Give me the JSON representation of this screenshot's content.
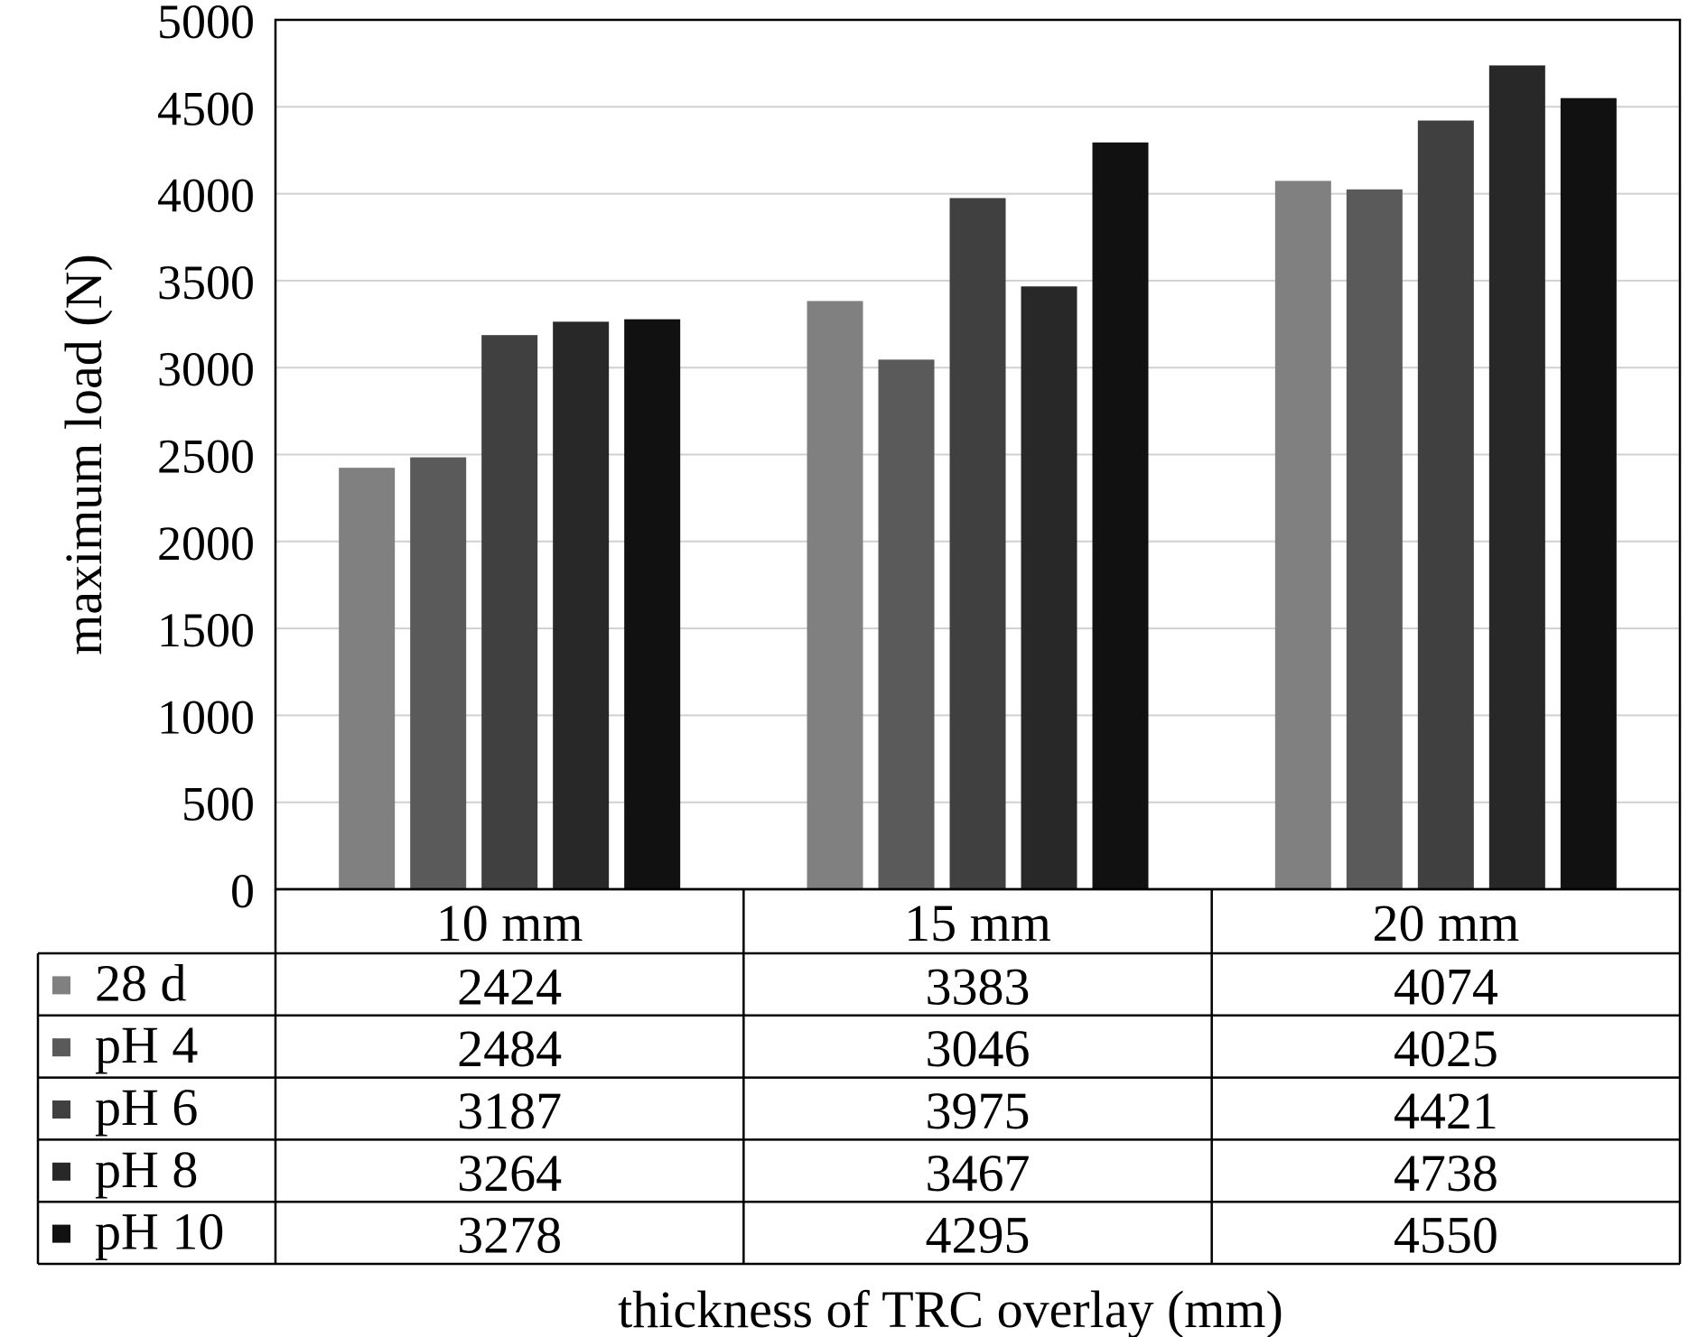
{
  "chart_data": {
    "type": "bar",
    "title": "",
    "xlabel": "thickness of TRC overlay (mm)",
    "ylabel": "maximum load (N)",
    "ylim": [
      0,
      5000
    ],
    "yticks": [
      0,
      500,
      1000,
      1500,
      2000,
      2500,
      3000,
      3500,
      4000,
      4500,
      5000
    ],
    "grid": true,
    "legend": "data table below plot",
    "categories": [
      "10 mm",
      "15 mm",
      "20 mm"
    ],
    "series": [
      {
        "name": "28 d",
        "color": "#808080",
        "values": [
          2424,
          3383,
          4074
        ]
      },
      {
        "name": "pH 4",
        "color": "#5a5a5a",
        "values": [
          2484,
          3046,
          4025
        ]
      },
      {
        "name": "pH 6",
        "color": "#404040",
        "values": [
          3187,
          3975,
          4421
        ]
      },
      {
        "name": "pH 8",
        "color": "#282828",
        "values": [
          3264,
          3467,
          4738
        ]
      },
      {
        "name": "pH 10",
        "color": "#111111",
        "values": [
          3278,
          4295,
          4550
        ]
      }
    ]
  }
}
